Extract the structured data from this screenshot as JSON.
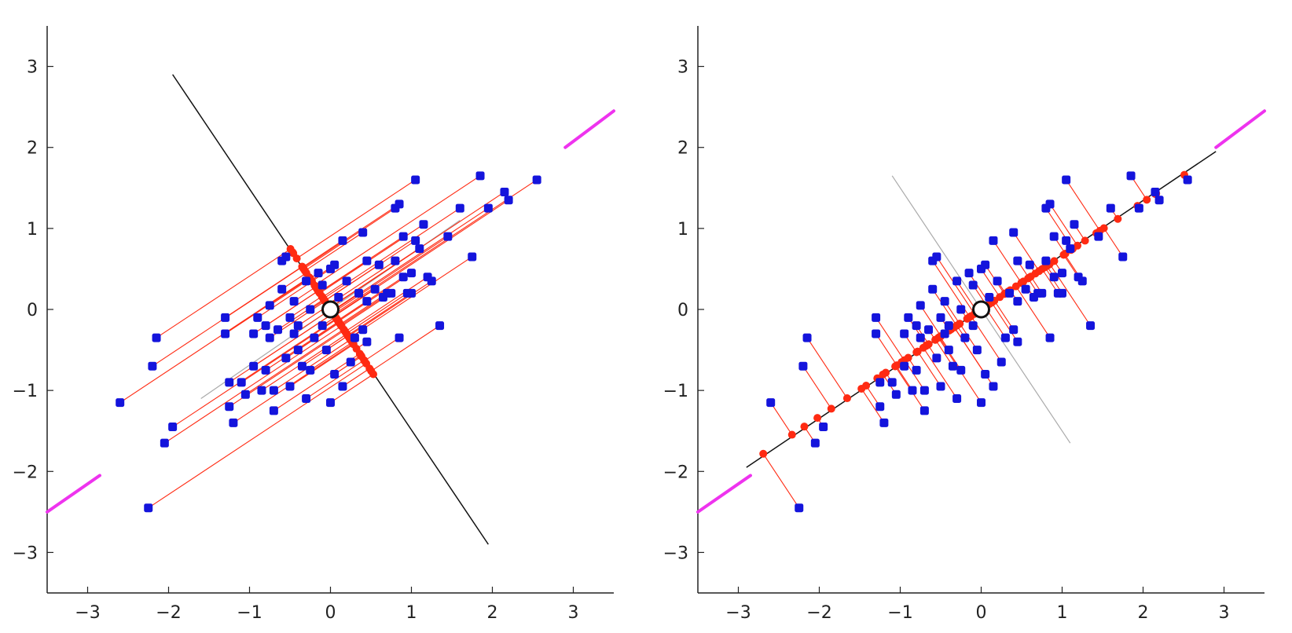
{
  "chart_data": [
    {
      "type": "scatter",
      "title": "",
      "xlabel": "",
      "ylabel": "",
      "xlim": [
        -3.5,
        3.5
      ],
      "ylim": [
        -3.5,
        3.5
      ],
      "xticks": [
        -3,
        -2,
        -1,
        0,
        1,
        2,
        3
      ],
      "yticks": [
        -3,
        -2,
        -1,
        0,
        1,
        2,
        3
      ],
      "grid": false,
      "mean_point": [
        0,
        0
      ],
      "projection_axis": {
        "direction_deg": -56.5,
        "line_from": [
          -1.95,
          2.9
        ],
        "line_to": [
          1.95,
          -2.9
        ]
      },
      "eigen_line_faint": {
        "from": [
          -1.6,
          -1.1
        ],
        "to": [
          1.6,
          1.1
        ]
      },
      "magenta_segments": [
        {
          "from": [
            -3.5,
            -2.5
          ],
          "to": [
            -2.85,
            -2.05
          ]
        },
        {
          "from": [
            2.9,
            2.0
          ],
          "to": [
            3.5,
            2.45
          ]
        }
      ],
      "colors": {
        "points": "#1414dc",
        "projections": "#ff2a12",
        "axis": "#111111",
        "faint_axis": "#aaaaaa",
        "magenta": "#ee33ee",
        "mean_fill": "#ffffff"
      }
    },
    {
      "type": "scatter",
      "title": "",
      "xlabel": "",
      "ylabel": "",
      "xlim": [
        -3.5,
        3.5
      ],
      "ylim": [
        -3.5,
        3.5
      ],
      "xticks": [
        -3,
        -2,
        -1,
        0,
        1,
        2,
        3
      ],
      "yticks": [
        -3,
        -2,
        -1,
        0,
        1,
        2,
        3
      ],
      "grid": false,
      "mean_point": [
        0,
        0
      ],
      "projection_axis": {
        "direction_deg": 33.5,
        "line_from": [
          -2.9,
          -1.95
        ],
        "line_to": [
          2.9,
          1.95
        ]
      },
      "eigen_line_faint": {
        "from": [
          -1.1,
          1.65
        ],
        "to": [
          1.1,
          -1.65
        ]
      },
      "magenta_segments": [
        {
          "from": [
            -3.5,
            -2.5
          ],
          "to": [
            -2.85,
            -2.05
          ]
        },
        {
          "from": [
            2.9,
            2.0
          ],
          "to": [
            3.5,
            2.45
          ]
        }
      ],
      "colors": {
        "points": "#1414dc",
        "projections": "#ff2a12",
        "axis": "#111111",
        "faint_axis": "#aaaaaa",
        "magenta": "#ee33ee",
        "mean_fill": "#ffffff"
      }
    }
  ],
  "points": [
    [
      -2.6,
      -1.15
    ],
    [
      -2.25,
      -2.45
    ],
    [
      -2.2,
      -0.7
    ],
    [
      -2.15,
      -0.35
    ],
    [
      -2.05,
      -1.65
    ],
    [
      -1.95,
      -1.45
    ],
    [
      -1.3,
      -0.1
    ],
    [
      -1.3,
      -0.3
    ],
    [
      -1.25,
      -0.9
    ],
    [
      -1.25,
      -1.2
    ],
    [
      -1.2,
      -1.4
    ],
    [
      -1.1,
      -0.9
    ],
    [
      -1.05,
      -1.05
    ],
    [
      -0.95,
      -0.3
    ],
    [
      -0.95,
      -0.7
    ],
    [
      -0.9,
      -0.1
    ],
    [
      -0.85,
      -1.0
    ],
    [
      -0.8,
      -0.2
    ],
    [
      -0.8,
      -0.75
    ],
    [
      -0.75,
      0.05
    ],
    [
      -0.75,
      -0.35
    ],
    [
      -0.7,
      -1.0
    ],
    [
      -0.7,
      -1.25
    ],
    [
      -0.65,
      -0.25
    ],
    [
      -0.6,
      0.25
    ],
    [
      -0.6,
      0.6
    ],
    [
      -0.55,
      0.65
    ],
    [
      -0.55,
      -0.6
    ],
    [
      -0.5,
      -0.1
    ],
    [
      -0.5,
      -0.95
    ],
    [
      -0.45,
      0.1
    ],
    [
      -0.45,
      -0.3
    ],
    [
      -0.4,
      -0.2
    ],
    [
      -0.4,
      -0.5
    ],
    [
      -0.35,
      -0.7
    ],
    [
      -0.3,
      0.35
    ],
    [
      -0.3,
      -1.1
    ],
    [
      -0.25,
      0.0
    ],
    [
      -0.25,
      -0.75
    ],
    [
      -0.2,
      -0.35
    ],
    [
      -0.15,
      0.45
    ],
    [
      -0.1,
      0.3
    ],
    [
      -0.1,
      -0.2
    ],
    [
      -0.05,
      -0.5
    ],
    [
      0.0,
      0.5
    ],
    [
      0.0,
      -1.15
    ],
    [
      0.05,
      0.55
    ],
    [
      0.05,
      -0.8
    ],
    [
      0.1,
      0.15
    ],
    [
      0.15,
      0.85
    ],
    [
      0.15,
      -0.95
    ],
    [
      0.2,
      0.35
    ],
    [
      0.25,
      -0.65
    ],
    [
      0.3,
      -0.35
    ],
    [
      0.35,
      0.2
    ],
    [
      0.4,
      0.95
    ],
    [
      0.4,
      -0.25
    ],
    [
      0.45,
      0.6
    ],
    [
      0.45,
      0.1
    ],
    [
      0.45,
      -0.4
    ],
    [
      0.55,
      0.25
    ],
    [
      0.6,
      0.55
    ],
    [
      0.65,
      0.15
    ],
    [
      0.7,
      0.2
    ],
    [
      0.75,
      0.2
    ],
    [
      0.8,
      0.6
    ],
    [
      0.8,
      1.25
    ],
    [
      0.85,
      1.3
    ],
    [
      0.85,
      -0.35
    ],
    [
      0.9,
      0.4
    ],
    [
      0.9,
      0.9
    ],
    [
      0.95,
      0.2
    ],
    [
      1.0,
      0.45
    ],
    [
      1.0,
      0.2
    ],
    [
      1.05,
      0.85
    ],
    [
      1.05,
      1.6
    ],
    [
      1.1,
      0.75
    ],
    [
      1.15,
      1.05
    ],
    [
      1.2,
      0.4
    ],
    [
      1.25,
      0.35
    ],
    [
      1.35,
      -0.2
    ],
    [
      1.45,
      0.9
    ],
    [
      1.6,
      1.25
    ],
    [
      1.75,
      0.65
    ],
    [
      1.85,
      1.65
    ],
    [
      1.95,
      1.25
    ],
    [
      2.15,
      1.45
    ],
    [
      2.2,
      1.35
    ],
    [
      2.55,
      1.6
    ]
  ]
}
